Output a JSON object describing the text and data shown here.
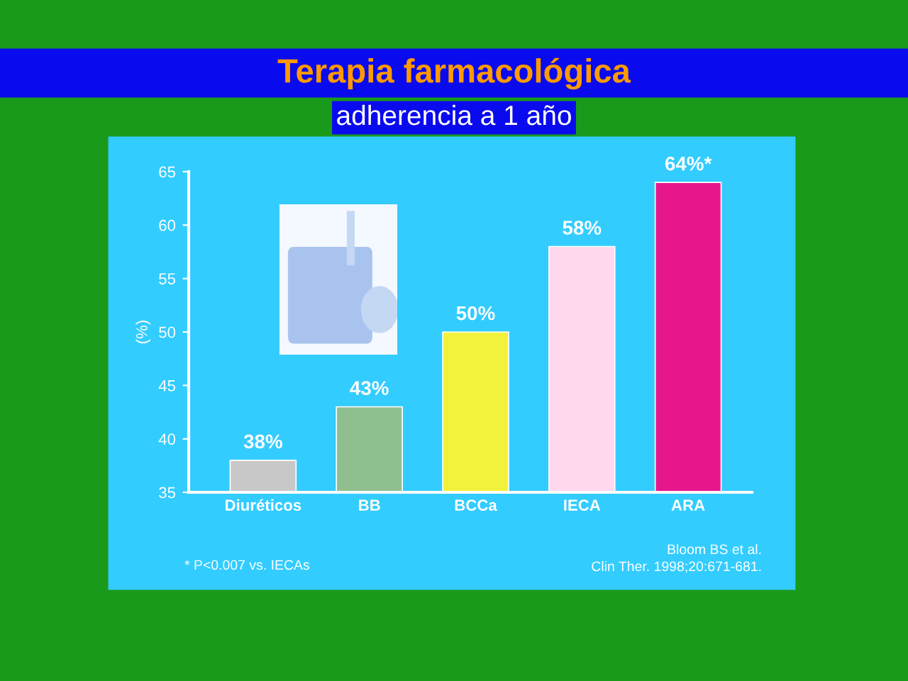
{
  "chart_data": {
    "type": "bar",
    "title": "Terapia farmacológica",
    "subtitle": "adherencia a 1 año",
    "ylabel": "(%)",
    "categories": [
      "Diuréticos",
      "BB",
      "BCCa",
      "IECA",
      "ARA"
    ],
    "values": [
      38,
      43,
      50,
      58,
      64
    ],
    "colors": [
      "#c8c8c8",
      "#8fbf8f",
      "#f2f23c",
      "#ffd8ee",
      "#e8168c"
    ],
    "value_labels": [
      "38%",
      "43%",
      "50%",
      "58%",
      "64%*"
    ],
    "ylim": [
      35,
      65
    ],
    "yticks": [
      35,
      40,
      45,
      50,
      55,
      60,
      65
    ],
    "grid": false,
    "legend": false,
    "annotations": [
      "* P<0.007 vs. IECAs",
      "Bloom BS et al.",
      "Clin Ther. 1998;20:671-681."
    ]
  }
}
